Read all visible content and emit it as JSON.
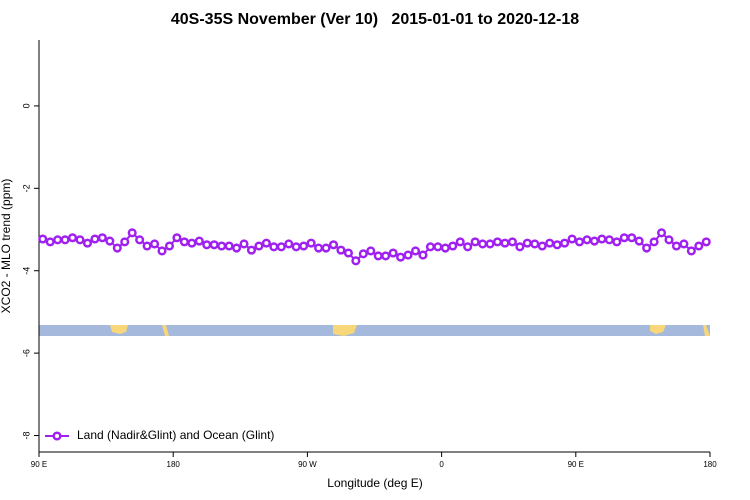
{
  "chart_data": {
    "type": "line",
    "title": "40S-35S November (Ver 10)   2015-01-01 to 2020-12-18",
    "x_label": "Longitude (deg E)",
    "y_label": "XCO2 - MLO trend (ppm)",
    "x": [
      92.5,
      97.5,
      102.5,
      107.5,
      112.5,
      117.5,
      122.5,
      127.5,
      132.5,
      137.5,
      142.5,
      147.5,
      152.5,
      157.5,
      162.5,
      167.5,
      172.5,
      177.5,
      182.5,
      187.5,
      192.5,
      197.5,
      202.5,
      207.5,
      212.5,
      217.5,
      222.5,
      227.5,
      232.5,
      237.5,
      242.5,
      247.5,
      252.5,
      257.5,
      262.5,
      267.5,
      272.5,
      277.5,
      282.5,
      287.5,
      292.5,
      297.5,
      302.5,
      307.5,
      312.5,
      317.5,
      322.5,
      327.5,
      332.5,
      337.5,
      342.5,
      347.5,
      352.5,
      357.5,
      362.5,
      367.5,
      372.5,
      377.5,
      382.5,
      387.5,
      392.5,
      397.5,
      402.5,
      407.5,
      412.5,
      417.5,
      422.5,
      427.5,
      432.5,
      437.5,
      442.5,
      447.5,
      452.5,
      457.5,
      462.5,
      467.5,
      472.5,
      477.5,
      482.5,
      487.5,
      492.5,
      497.5,
      502.5,
      507.5,
      512.5,
      517.5,
      522.5,
      527.5,
      532.5,
      537.5
    ],
    "series": [
      {
        "name": "Land (Nadir&Glint) and Ocean (Glint)",
        "color": "#a020f0",
        "values": [
          -3.23,
          -3.3,
          -3.25,
          -3.25,
          -3.2,
          -3.25,
          -3.33,
          -3.23,
          -3.2,
          -3.28,
          -3.45,
          -3.3,
          -3.08,
          -3.25,
          -3.4,
          -3.35,
          -3.52,
          -3.4,
          -3.2,
          -3.3,
          -3.33,
          -3.28,
          -3.37,
          -3.37,
          -3.4,
          -3.4,
          -3.45,
          -3.35,
          -3.5,
          -3.4,
          -3.33,
          -3.42,
          -3.42,
          -3.35,
          -3.42,
          -3.4,
          -3.33,
          -3.45,
          -3.45,
          -3.37,
          -3.5,
          -3.57,
          -3.76,
          -3.59,
          -3.52,
          -3.64,
          -3.64,
          -3.57,
          -3.67,
          -3.62,
          -3.52,
          -3.62,
          -3.42,
          -3.42,
          -3.45,
          -3.4,
          -3.3,
          -3.42,
          -3.3,
          -3.35,
          -3.35,
          -3.3,
          -3.33,
          -3.3,
          -3.42,
          -3.33,
          -3.35,
          -3.4,
          -3.33,
          -3.37,
          -3.33,
          -3.23,
          -3.3,
          -3.25,
          -3.28,
          -3.23,
          -3.25,
          -3.3,
          -3.2,
          -3.2,
          -3.28,
          -3.45,
          -3.3,
          -3.08,
          -3.25,
          -3.4,
          -3.35,
          -3.52,
          -3.4,
          -3.3
        ]
      }
    ],
    "xlim": [
      90,
      540
    ],
    "xticks": [
      {
        "value": 90,
        "label": "90 E"
      },
      {
        "value": 180,
        "label": "180"
      },
      {
        "value": 270,
        "label": "90 W"
      },
      {
        "value": 360,
        "label": "0"
      },
      {
        "value": 450,
        "label": "90 E"
      },
      {
        "value": 540,
        "label": "180"
      }
    ],
    "ylim": [
      -8.4,
      1.6
    ],
    "yticks": [
      0,
      -2,
      -4,
      -6,
      -8
    ],
    "legend": "bottom-left"
  }
}
